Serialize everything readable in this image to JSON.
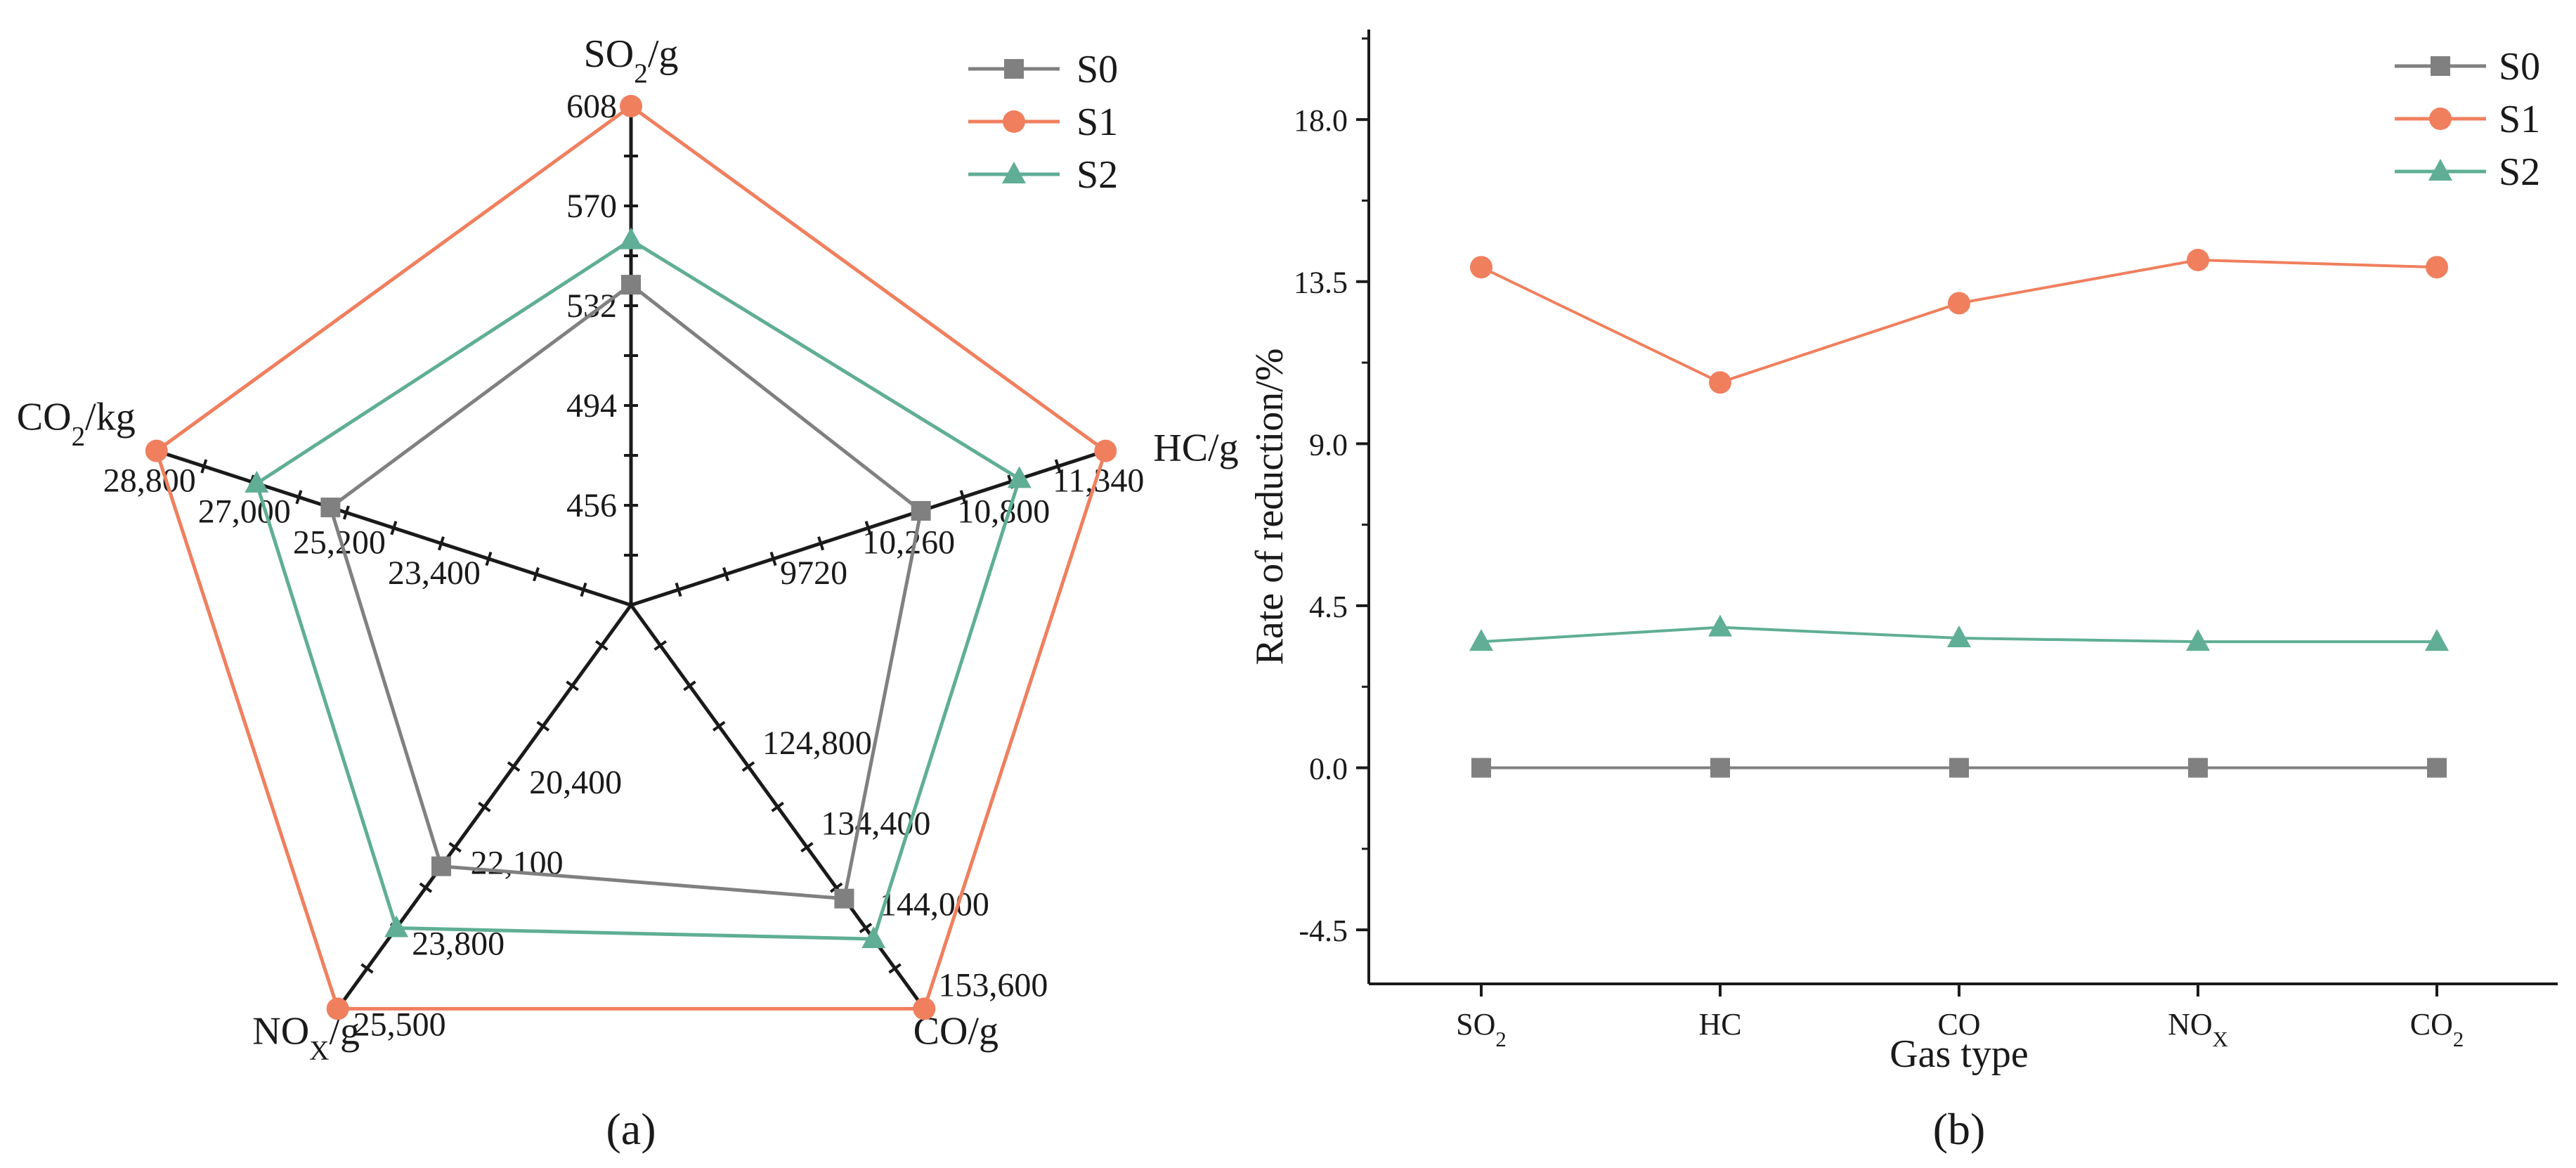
{
  "colors": {
    "S0": "#808080",
    "S1": "#f07f5e",
    "S2": "#5fae95",
    "axis": "#1a1a1a"
  },
  "chart_data": [
    {
      "type": "radar",
      "panel_label": "(a)",
      "axes": [
        {
          "name": "SO",
          "sub": "2",
          "unit": "/g",
          "ticks": [
            456,
            494,
            532,
            570,
            608
          ],
          "tick_labels": [
            "456",
            "494",
            "532",
            "570",
            "608"
          ],
          "range": [
            418,
            608
          ]
        },
        {
          "name": "HC",
          "sub": "",
          "unit": "/g",
          "ticks": [
            9720,
            10260,
            10800,
            11340
          ],
          "tick_labels": [
            "9720",
            "10,260",
            "10,800",
            "11,340"
          ],
          "range": [
            8640,
            11340
          ]
        },
        {
          "name": "CO",
          "sub": "",
          "unit": "/g",
          "ticks": [
            124800,
            134400,
            144000,
            153600
          ],
          "tick_labels": [
            "124,800",
            "134,400",
            "144,000",
            "153,600"
          ],
          "range": [
            105600,
            153600
          ]
        },
        {
          "name": "NO",
          "sub": "X",
          "unit": "/g",
          "ticks": [
            20400,
            22100,
            23800,
            25500
          ],
          "tick_labels": [
            "20,400",
            "22,100",
            "23,800",
            "25,500"
          ],
          "range": [
            17000,
            25500
          ]
        },
        {
          "name": "CO",
          "sub": "2",
          "unit": "/kg",
          "ticks": [
            23400,
            25200,
            27000,
            28800
          ],
          "tick_labels": [
            "23,400",
            "25,200",
            "27,000",
            "28,800"
          ],
          "range": [
            19800,
            28800
          ]
        }
      ],
      "series": [
        {
          "name": "S0",
          "values": [
            540,
            10290,
            140500,
            22500,
            25500
          ]
        },
        {
          "name": "S1",
          "values": [
            608,
            11340,
            153600,
            25500,
            28800
          ]
        },
        {
          "name": "S2",
          "values": [
            557,
            10850,
            145300,
            23800,
            26900
          ]
        }
      ],
      "legend": [
        "S0",
        "S1",
        "S2"
      ]
    },
    {
      "type": "line",
      "panel_label": "(b)",
      "categories": [
        {
          "name": "SO",
          "sub": "2"
        },
        {
          "name": "HC",
          "sub": ""
        },
        {
          "name": "CO",
          "sub": ""
        },
        {
          "name": "NO",
          "sub": "X"
        },
        {
          "name": "CO",
          "sub": "2"
        }
      ],
      "series": [
        {
          "name": "S0",
          "values": [
            0,
            0,
            0,
            0,
            0
          ]
        },
        {
          "name": "S1",
          "values": [
            13.9,
            10.7,
            12.9,
            14.1,
            13.9
          ]
        },
        {
          "name": "S2",
          "values": [
            3.5,
            3.9,
            3.6,
            3.5,
            3.5
          ]
        }
      ],
      "xlabel": "Gas type",
      "ylabel": "Rate of reduction/%",
      "yticks": [
        -4.5,
        0.0,
        4.5,
        9.0,
        13.5,
        18.0
      ],
      "ytick_labels": [
        "-4.5",
        "0.0",
        "4.5",
        "9.0",
        "13.5",
        "18.0"
      ],
      "ylim": [
        -6,
        20.5
      ],
      "legend": [
        "S0",
        "S1",
        "S2"
      ]
    }
  ]
}
